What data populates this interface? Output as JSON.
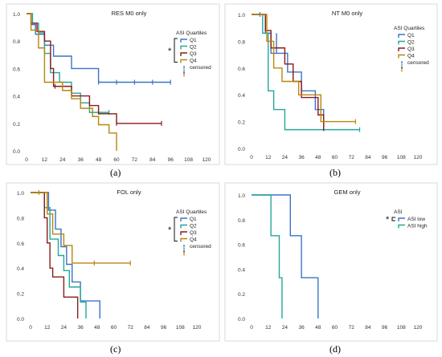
{
  "colors": {
    "Q1": "#3a74c9",
    "Q2": "#26a69a",
    "Q3": "#8b1a1a",
    "Q4": "#b8860b",
    "ASI low": "#3a74c9",
    "ASI high": "#26a69a"
  },
  "chart_data": [
    {
      "type": "line",
      "subtype": "kaplan-meier",
      "title": "RES M0 only",
      "panel_label": "(a)",
      "legend_title": "ASI Quartiles",
      "legend_labels": [
        "Q1",
        "Q2",
        "Q3",
        "Q4",
        "censored"
      ],
      "significance_marker": "*",
      "legend_position": "right",
      "xlim": [
        0,
        120
      ],
      "ylim": [
        0,
        1.0
      ],
      "x_ticks": [
        "0",
        "12",
        "24",
        "36",
        "48",
        "60",
        "72",
        "84",
        "96",
        "108",
        "120"
      ],
      "y_ticks": [
        "0.0",
        "0.2",
        "0.4",
        "0.6",
        "0.8",
        "1.0"
      ],
      "grid": false,
      "series": [
        {
          "name": "Q1",
          "steps": [
            [
              0,
              1.0
            ],
            [
              3,
              0.92
            ],
            [
              6,
              0.85
            ],
            [
              12,
              0.77
            ],
            [
              18,
              0.69
            ],
            [
              30,
              0.6
            ],
            [
              48,
              0.5
            ],
            [
              96,
              0.5
            ]
          ],
          "censored": [
            48,
            60,
            72,
            84,
            96
          ]
        },
        {
          "name": "Q2",
          "steps": [
            [
              0,
              1.0
            ],
            [
              4,
              0.93
            ],
            [
              8,
              0.86
            ],
            [
              12,
              0.71
            ],
            [
              16,
              0.57
            ],
            [
              22,
              0.5
            ],
            [
              30,
              0.42
            ],
            [
              36,
              0.35
            ],
            [
              42,
              0.28
            ],
            [
              55,
              0.28
            ]
          ],
          "censored": [
            48,
            55
          ]
        },
        {
          "name": "Q3",
          "steps": [
            [
              0,
              1.0
            ],
            [
              3,
              0.93
            ],
            [
              7,
              0.87
            ],
            [
              12,
              0.8
            ],
            [
              16,
              0.6
            ],
            [
              18,
              0.47
            ],
            [
              30,
              0.4
            ],
            [
              42,
              0.33
            ],
            [
              48,
              0.27
            ],
            [
              60,
              0.2
            ],
            [
              90,
              0.2
            ]
          ],
          "censored": [
            19,
            60,
            90
          ]
        },
        {
          "name": "Q4",
          "steps": [
            [
              0,
              1.0
            ],
            [
              3,
              0.88
            ],
            [
              8,
              0.75
            ],
            [
              12,
              0.5
            ],
            [
              24,
              0.44
            ],
            [
              30,
              0.38
            ],
            [
              36,
              0.31
            ],
            [
              44,
              0.25
            ],
            [
              48,
              0.19
            ],
            [
              55,
              0.13
            ],
            [
              60,
              0.0
            ]
          ],
          "censored": []
        }
      ]
    },
    {
      "type": "line",
      "subtype": "kaplan-meier",
      "title": "NT M0 only",
      "panel_label": "(b)",
      "legend_title": "ASI Quartiles",
      "legend_labels": [
        "Q1",
        "Q2",
        "Q3",
        "Q4",
        "censored"
      ],
      "significance_marker": "",
      "legend_position": "right",
      "xlim": [
        0,
        120
      ],
      "ylim": [
        0,
        1.0
      ],
      "x_ticks": [
        "0",
        "12",
        "24",
        "36",
        "48",
        "60",
        "72",
        "84",
        "96",
        "108",
        "120"
      ],
      "y_ticks": [
        "0.0",
        "0.2",
        "0.4",
        "0.6",
        "0.8",
        "1.0"
      ],
      "grid": false,
      "series": [
        {
          "name": "Q1",
          "steps": [
            [
              0,
              1.0
            ],
            [
              10,
              0.86
            ],
            [
              14,
              0.71
            ],
            [
              18,
              0.86
            ],
            [
              18,
              0.71
            ],
            [
              26,
              0.57
            ],
            [
              36,
              0.43
            ],
            [
              46,
              0.29
            ],
            [
              52,
              0.14
            ]
          ],
          "censored": [
            6
          ]
        },
        {
          "name": "Q2",
          "steps": [
            [
              0,
              1.0
            ],
            [
              8,
              0.86
            ],
            [
              12,
              0.43
            ],
            [
              16,
              0.29
            ],
            [
              24,
              0.14
            ],
            [
              78,
              0.14
            ]
          ],
          "censored": [
            78
          ]
        },
        {
          "name": "Q3",
          "steps": [
            [
              0,
              1.0
            ],
            [
              10,
              0.88
            ],
            [
              14,
              0.75
            ],
            [
              24,
              0.63
            ],
            [
              30,
              0.5
            ],
            [
              36,
              0.38
            ],
            [
              48,
              0.25
            ],
            [
              52,
              0.13
            ]
          ],
          "censored": []
        },
        {
          "name": "Q4",
          "steps": [
            [
              0,
              1.0
            ],
            [
              11,
              0.8
            ],
            [
              16,
              0.6
            ],
            [
              22,
              0.5
            ],
            [
              34,
              0.4
            ],
            [
              50,
              0.2
            ],
            [
              75,
              0.2
            ]
          ],
          "censored": [
            12,
            75
          ]
        }
      ]
    },
    {
      "type": "line",
      "subtype": "kaplan-meier",
      "title": "FOL only",
      "panel_label": "(c)",
      "legend_title": "ASI Quartiles",
      "legend_labels": [
        "Q1",
        "Q2",
        "Q3",
        "Q4",
        "censored"
      ],
      "significance_marker": "*",
      "legend_position": "right",
      "xlim": [
        0,
        120
      ],
      "ylim": [
        0,
        1.0
      ],
      "x_ticks": [
        "0",
        "12",
        "24",
        "36",
        "48",
        "60",
        "72",
        "84",
        "96",
        "108",
        "120"
      ],
      "y_ticks": [
        "0.0",
        "0.2",
        "0.4",
        "0.6",
        "0.8",
        "1.0"
      ],
      "grid": false,
      "series": [
        {
          "name": "Q1",
          "steps": [
            [
              0,
              1.0
            ],
            [
              13,
              0.86
            ],
            [
              18,
              0.71
            ],
            [
              22,
              0.57
            ],
            [
              26,
              0.43
            ],
            [
              30,
              0.29
            ],
            [
              36,
              0.14
            ],
            [
              50,
              0.0
            ]
          ],
          "censored": []
        },
        {
          "name": "Q2",
          "steps": [
            [
              0,
              1.0
            ],
            [
              10,
              0.88
            ],
            [
              14,
              0.63
            ],
            [
              20,
              0.5
            ],
            [
              24,
              0.38
            ],
            [
              28,
              0.25
            ],
            [
              36,
              0.13
            ],
            [
              40,
              0.0
            ]
          ],
          "censored": []
        },
        {
          "name": "Q3",
          "steps": [
            [
              0,
              1.0
            ],
            [
              10,
              0.8
            ],
            [
              12,
              0.6
            ],
            [
              14,
              0.4
            ],
            [
              16,
              0.33
            ],
            [
              24,
              0.17
            ],
            [
              34,
              0.0
            ]
          ],
          "censored": []
        },
        {
          "name": "Q4",
          "steps": [
            [
              0,
              1.0
            ],
            [
              12,
              0.83
            ],
            [
              16,
              0.67
            ],
            [
              24,
              0.58
            ],
            [
              30,
              0.44
            ],
            [
              72,
              0.44
            ]
          ],
          "censored": [
            6,
            46,
            72
          ]
        }
      ]
    },
    {
      "type": "line",
      "subtype": "kaplan-meier",
      "title": "GEM only",
      "panel_label": "(d)",
      "legend_title": "ASI",
      "legend_labels": [
        "ASI low",
        "ASI high"
      ],
      "significance_marker": "*",
      "legend_position": "right",
      "xlim": [
        0,
        120
      ],
      "ylim": [
        0,
        1.0
      ],
      "x_ticks": [
        "0",
        "12",
        "24",
        "36",
        "48",
        "60",
        "72",
        "84",
        "96",
        "108",
        "120"
      ],
      "y_ticks": [
        "0.0",
        "0.2",
        "0.4",
        "0.6",
        "0.8",
        "1.0"
      ],
      "grid": false,
      "series": [
        {
          "name": "ASI low",
          "steps": [
            [
              0,
              1.0
            ],
            [
              28,
              0.67
            ],
            [
              36,
              0.33
            ],
            [
              48,
              0.0
            ]
          ],
          "censored": []
        },
        {
          "name": "ASI high",
          "steps": [
            [
              0,
              1.0
            ],
            [
              14,
              0.67
            ],
            [
              20,
              0.33
            ],
            [
              22,
              0.0
            ]
          ],
          "censored": []
        }
      ]
    }
  ]
}
